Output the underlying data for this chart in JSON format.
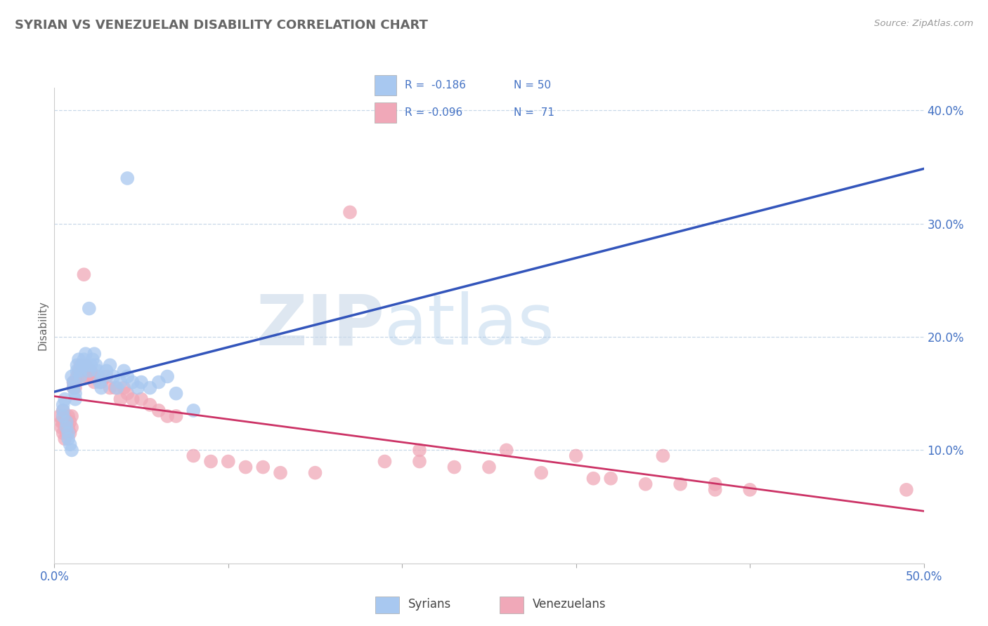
{
  "title": "SYRIAN VS VENEZUELAN DISABILITY CORRELATION CHART",
  "source": "Source: ZipAtlas.com",
  "ylabel": "Disability",
  "xlim": [
    0.0,
    0.5
  ],
  "ylim": [
    0.0,
    0.42
  ],
  "yticks": [
    0.1,
    0.2,
    0.3,
    0.4
  ],
  "ytick_labels": [
    "10.0%",
    "20.0%",
    "30.0%",
    "40.0%"
  ],
  "xticks": [
    0.0,
    0.1,
    0.2,
    0.3,
    0.4,
    0.5
  ],
  "xtick_labels": [
    "0.0%",
    "",
    "",
    "",
    "",
    "50.0%"
  ],
  "syrian_color": "#a8c8f0",
  "venezuelan_color": "#f0a8b8",
  "syrian_line_color": "#3355bb",
  "venezuelan_line_color": "#cc3366",
  "watermark_zip": "ZIP",
  "watermark_atlas": "atlas",
  "syrians_x": [
    0.005,
    0.005,
    0.005,
    0.006,
    0.007,
    0.007,
    0.008,
    0.008,
    0.009,
    0.01,
    0.01,
    0.011,
    0.011,
    0.012,
    0.012,
    0.013,
    0.013,
    0.014,
    0.015,
    0.015,
    0.016,
    0.017,
    0.018,
    0.019,
    0.02,
    0.021,
    0.022,
    0.023,
    0.024,
    0.025,
    0.026,
    0.027,
    0.028,
    0.03,
    0.032,
    0.034,
    0.036,
    0.038,
    0.04,
    0.042,
    0.045,
    0.048,
    0.05,
    0.055,
    0.06,
    0.065,
    0.07,
    0.08,
    0.042,
    0.02
  ],
  "syrians_y": [
    0.135,
    0.13,
    0.14,
    0.145,
    0.125,
    0.12,
    0.115,
    0.11,
    0.105,
    0.1,
    0.165,
    0.16,
    0.155,
    0.15,
    0.145,
    0.175,
    0.17,
    0.18,
    0.165,
    0.17,
    0.175,
    0.18,
    0.185,
    0.175,
    0.17,
    0.175,
    0.18,
    0.185,
    0.175,
    0.17,
    0.16,
    0.155,
    0.165,
    0.17,
    0.175,
    0.165,
    0.155,
    0.16,
    0.17,
    0.165,
    0.16,
    0.155,
    0.16,
    0.155,
    0.16,
    0.165,
    0.15,
    0.135,
    0.34,
    0.225
  ],
  "venezuelans_x": [
    0.003,
    0.004,
    0.004,
    0.005,
    0.005,
    0.005,
    0.006,
    0.006,
    0.006,
    0.007,
    0.007,
    0.008,
    0.008,
    0.009,
    0.009,
    0.01,
    0.01,
    0.011,
    0.011,
    0.012,
    0.012,
    0.013,
    0.014,
    0.015,
    0.016,
    0.017,
    0.018,
    0.019,
    0.02,
    0.021,
    0.022,
    0.023,
    0.025,
    0.027,
    0.03,
    0.032,
    0.035,
    0.038,
    0.04,
    0.042,
    0.045,
    0.05,
    0.055,
    0.06,
    0.065,
    0.07,
    0.08,
    0.09,
    0.1,
    0.11,
    0.12,
    0.13,
    0.15,
    0.17,
    0.19,
    0.21,
    0.23,
    0.25,
    0.28,
    0.31,
    0.32,
    0.34,
    0.36,
    0.38,
    0.4,
    0.38,
    0.35,
    0.3,
    0.26,
    0.21,
    0.49
  ],
  "venezuelans_y": [
    0.13,
    0.125,
    0.12,
    0.135,
    0.125,
    0.115,
    0.13,
    0.12,
    0.11,
    0.125,
    0.115,
    0.13,
    0.12,
    0.125,
    0.115,
    0.13,
    0.12,
    0.16,
    0.155,
    0.16,
    0.155,
    0.165,
    0.17,
    0.175,
    0.165,
    0.255,
    0.175,
    0.165,
    0.17,
    0.17,
    0.165,
    0.16,
    0.165,
    0.16,
    0.165,
    0.155,
    0.155,
    0.145,
    0.155,
    0.15,
    0.145,
    0.145,
    0.14,
    0.135,
    0.13,
    0.13,
    0.095,
    0.09,
    0.09,
    0.085,
    0.085,
    0.08,
    0.08,
    0.31,
    0.09,
    0.09,
    0.085,
    0.085,
    0.08,
    0.075,
    0.075,
    0.07,
    0.07,
    0.065,
    0.065,
    0.07,
    0.095,
    0.095,
    0.1,
    0.1,
    0.065
  ]
}
